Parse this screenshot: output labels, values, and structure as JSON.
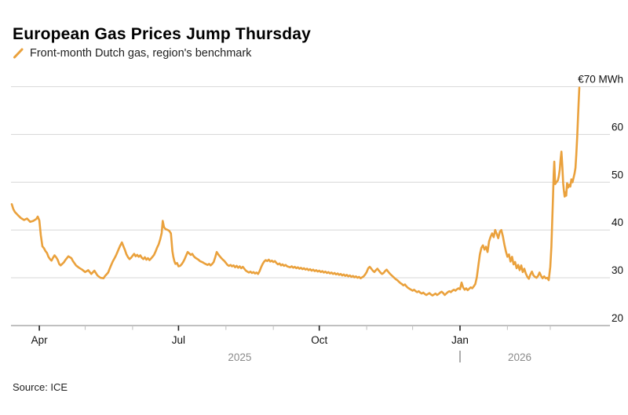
{
  "header": {
    "title": "European Gas Prices Jump Thursday",
    "legend_label": "Front-month Dutch gas, region's benchmark"
  },
  "footer": {
    "source": "Source: ICE"
  },
  "colors": {
    "background": "#FFFFFF",
    "line": "#EAA13C",
    "grid": "#DBDBDB",
    "axis": "#9A9A9A",
    "tick_major": "#222222",
    "tick_minor": "#C3C3C3",
    "label": "#111111",
    "muted": "#8A8A8A"
  },
  "chart_data": {
    "type": "line",
    "title": "European Gas Prices Jump Thursday",
    "series_name": "Front-month Dutch gas, region's benchmark",
    "unit": "EUR/MWh",
    "legend_position": "top-left",
    "grid": true,
    "y_axis": {
      "min": 20,
      "max": 70,
      "step": 10,
      "top_label": "€70 MWh",
      "tick_labels": [
        "20",
        "30",
        "40",
        "50",
        "60"
      ]
    },
    "x_axis": {
      "d_unit": "days since 2025-04-01 (visible axis: Apr 2025 - Mar 2026)",
      "domain": [
        -18.5,
        373
      ],
      "months": [
        {
          "d": 0,
          "label": "Apr"
        },
        {
          "d": 30,
          "label": ""
        },
        {
          "d": 61,
          "label": ""
        },
        {
          "d": 91,
          "label": "Jul"
        },
        {
          "d": 122,
          "label": ""
        },
        {
          "d": 153,
          "label": ""
        },
        {
          "d": 183,
          "label": "Oct"
        },
        {
          "d": 214,
          "label": ""
        },
        {
          "d": 244,
          "label": ""
        },
        {
          "d": 275,
          "label": "Jan"
        },
        {
          "d": 306,
          "label": ""
        },
        {
          "d": 334,
          "label": ""
        }
      ],
      "years": [
        {
          "d": 131,
          "label": "2025"
        },
        {
          "d": 314,
          "label": "2026"
        }
      ],
      "year_divider_d": 275
    },
    "points": [
      [
        -18,
        45.4
      ],
      [
        -17,
        44.4
      ],
      [
        -16,
        43.8
      ],
      [
        -14,
        43.1
      ],
      [
        -12,
        42.5
      ],
      [
        -10,
        42.1
      ],
      [
        -8,
        42.4
      ],
      [
        -6,
        41.7
      ],
      [
        -4,
        41.9
      ],
      [
        -2,
        42.3
      ],
      [
        -1,
        42.8
      ],
      [
        0,
        42.0
      ],
      [
        1,
        38.9
      ],
      [
        2,
        36.6
      ],
      [
        3,
        36.2
      ],
      [
        4,
        35.6
      ],
      [
        5,
        35.2
      ],
      [
        6,
        34.4
      ],
      [
        7,
        33.9
      ],
      [
        8,
        33.6
      ],
      [
        9,
        34.2
      ],
      [
        10,
        34.7
      ],
      [
        11,
        34.3
      ],
      [
        12,
        33.8
      ],
      [
        13,
        32.9
      ],
      [
        14,
        32.6
      ],
      [
        16,
        33.2
      ],
      [
        17,
        33.7
      ],
      [
        19,
        34.5
      ],
      [
        21,
        34.1
      ],
      [
        22,
        33.5
      ],
      [
        24,
        32.6
      ],
      [
        26,
        32.1
      ],
      [
        28,
        31.7
      ],
      [
        30,
        31.2
      ],
      [
        32,
        31.6
      ],
      [
        34,
        30.8
      ],
      [
        36,
        31.5
      ],
      [
        38,
        30.5
      ],
      [
        40,
        30.0
      ],
      [
        42,
        29.9
      ],
      [
        43,
        30.4
      ],
      [
        45,
        31.1
      ],
      [
        46,
        31.9
      ],
      [
        47,
        32.7
      ],
      [
        48,
        33.4
      ],
      [
        49,
        34.0
      ],
      [
        50,
        34.6
      ],
      [
        51,
        35.3
      ],
      [
        52,
        36.1
      ],
      [
        53,
        36.8
      ],
      [
        54,
        37.4
      ],
      [
        55,
        36.6
      ],
      [
        56,
        35.8
      ],
      [
        57,
        34.9
      ],
      [
        58,
        34.3
      ],
      [
        59,
        33.9
      ],
      [
        60,
        34.2
      ],
      [
        61,
        34.6
      ],
      [
        62,
        35.0
      ],
      [
        63,
        34.5
      ],
      [
        64,
        34.8
      ],
      [
        65,
        34.4
      ],
      [
        66,
        34.7
      ],
      [
        67,
        34.2
      ],
      [
        68,
        33.9
      ],
      [
        69,
        34.3
      ],
      [
        70,
        33.8
      ],
      [
        71,
        34.1
      ],
      [
        72,
        33.7
      ],
      [
        73,
        34.0
      ],
      [
        74,
        34.4
      ],
      [
        75,
        34.8
      ],
      [
        76,
        35.5
      ],
      [
        77,
        36.3
      ],
      [
        78,
        37.0
      ],
      [
        79,
        38.0
      ],
      [
        80,
        39.4
      ],
      [
        80.7,
        41.9
      ],
      [
        81.5,
        40.6
      ],
      [
        82.5,
        40.2
      ],
      [
        84,
        40.0
      ],
      [
        85,
        39.8
      ],
      [
        86,
        39.3
      ],
      [
        86.5,
        37.6
      ],
      [
        87,
        35.6
      ],
      [
        87.6,
        34.4
      ],
      [
        88.3,
        33.5
      ],
      [
        89,
        32.9
      ],
      [
        90,
        33.1
      ],
      [
        90.6,
        32.7
      ],
      [
        91,
        32.4
      ],
      [
        92,
        32.5
      ],
      [
        93,
        32.8
      ],
      [
        94,
        33.3
      ],
      [
        95,
        33.9
      ],
      [
        96,
        34.7
      ],
      [
        97,
        35.4
      ],
      [
        98,
        35.1
      ],
      [
        99,
        34.8
      ],
      [
        100,
        35.0
      ],
      [
        101,
        34.5
      ],
      [
        102,
        34.2
      ],
      [
        104,
        33.8
      ],
      [
        105,
        33.5
      ],
      [
        107,
        33.2
      ],
      [
        108,
        33.0
      ],
      [
        110,
        32.7
      ],
      [
        111,
        32.9
      ],
      [
        112,
        32.6
      ],
      [
        113,
        32.9
      ],
      [
        114,
        33.3
      ],
      [
        115,
        34.3
      ],
      [
        116,
        35.4
      ],
      [
        117,
        34.9
      ],
      [
        118,
        34.5
      ],
      [
        119,
        34.1
      ],
      [
        120,
        33.8
      ],
      [
        121,
        33.5
      ],
      [
        122,
        33.1
      ],
      [
        123,
        32.7
      ],
      [
        124,
        32.5
      ],
      [
        125,
        32.7
      ],
      [
        126,
        32.4
      ],
      [
        127,
        32.6
      ],
      [
        128,
        32.2
      ],
      [
        129,
        32.5
      ],
      [
        130,
        32.1
      ],
      [
        131,
        32.4
      ],
      [
        132,
        32.0
      ],
      [
        133,
        32.3
      ],
      [
        134,
        31.9
      ],
      [
        135,
        31.5
      ],
      [
        136,
        31.3
      ],
      [
        137,
        31.1
      ],
      [
        138,
        31.3
      ],
      [
        139,
        31.0
      ],
      [
        140,
        31.2
      ],
      [
        141,
        30.9
      ],
      [
        142,
        31.1
      ],
      [
        143,
        30.8
      ],
      [
        144,
        31.4
      ],
      [
        145,
        32.2
      ],
      [
        146,
        32.9
      ],
      [
        147,
        33.4
      ],
      [
        148,
        33.7
      ],
      [
        149,
        33.5
      ],
      [
        150,
        33.8
      ],
      [
        151,
        33.4
      ],
      [
        152,
        33.6
      ],
      [
        153,
        33.3
      ],
      [
        154,
        33.5
      ],
      [
        155,
        33.1
      ],
      [
        156,
        32.8
      ],
      [
        157,
        33.0
      ],
      [
        158,
        32.6
      ],
      [
        159,
        32.8
      ],
      [
        160,
        32.5
      ],
      [
        161,
        32.7
      ],
      [
        162,
        32.4
      ],
      [
        164,
        32.2
      ],
      [
        165,
        32.4
      ],
      [
        166,
        32.1
      ],
      [
        167,
        32.3
      ],
      [
        168,
        32.0
      ],
      [
        169,
        32.2
      ],
      [
        170,
        31.9
      ],
      [
        171,
        32.1
      ],
      [
        172,
        31.8
      ],
      [
        173,
        32.0
      ],
      [
        174,
        31.7
      ],
      [
        175,
        31.9
      ],
      [
        176,
        31.6
      ],
      [
        177,
        31.8
      ],
      [
        178,
        31.5
      ],
      [
        179,
        31.7
      ],
      [
        180,
        31.4
      ],
      [
        181,
        31.6
      ],
      [
        182,
        31.3
      ],
      [
        183,
        31.5
      ],
      [
        184,
        31.2
      ],
      [
        185,
        31.4
      ],
      [
        186,
        31.1
      ],
      [
        187,
        31.3
      ],
      [
        188,
        31.0
      ],
      [
        189,
        31.2
      ],
      [
        190,
        30.9
      ],
      [
        191,
        31.1
      ],
      [
        192,
        30.8
      ],
      [
        193,
        31.0
      ],
      [
        194,
        30.7
      ],
      [
        195,
        30.9
      ],
      [
        196,
        30.6
      ],
      [
        197,
        30.8
      ],
      [
        198,
        30.5
      ],
      [
        199,
        30.7
      ],
      [
        200,
        30.4
      ],
      [
        201,
        30.6
      ],
      [
        202,
        30.3
      ],
      [
        203,
        30.5
      ],
      [
        204,
        30.2
      ],
      [
        205,
        30.4
      ],
      [
        206,
        30.1
      ],
      [
        207,
        30.3
      ],
      [
        208,
        30.0
      ],
      [
        209,
        30.2
      ],
      [
        210,
        29.9
      ],
      [
        211,
        30.1
      ],
      [
        212,
        30.3
      ],
      [
        213,
        30.7
      ],
      [
        214,
        31.2
      ],
      [
        215,
        32.0
      ],
      [
        216,
        32.3
      ],
      [
        217,
        31.9
      ],
      [
        218,
        31.5
      ],
      [
        219,
        31.2
      ],
      [
        220,
        31.6
      ],
      [
        221,
        31.9
      ],
      [
        222,
        31.5
      ],
      [
        223,
        31.1
      ],
      [
        224,
        30.8
      ],
      [
        225,
        31.0
      ],
      [
        226,
        31.4
      ],
      [
        227,
        31.7
      ],
      [
        228,
        31.3
      ],
      [
        229,
        30.9
      ],
      [
        230,
        30.6
      ],
      [
        231,
        30.3
      ],
      [
        232,
        30.0
      ],
      [
        233,
        29.7
      ],
      [
        234,
        29.5
      ],
      [
        235,
        29.2
      ],
      [
        236,
        28.9
      ],
      [
        237,
        28.7
      ],
      [
        238,
        28.4
      ],
      [
        239,
        28.6
      ],
      [
        240,
        28.2
      ],
      [
        241,
        27.9
      ],
      [
        242,
        27.7
      ],
      [
        243,
        27.5
      ],
      [
        244,
        27.3
      ],
      [
        245,
        27.5
      ],
      [
        246,
        27.2
      ],
      [
        247,
        27.0
      ],
      [
        248,
        27.2
      ],
      [
        249,
        26.9
      ],
      [
        250,
        26.7
      ],
      [
        251,
        26.9
      ],
      [
        252,
        26.6
      ],
      [
        253,
        26.4
      ],
      [
        254,
        26.6
      ],
      [
        255,
        26.8
      ],
      [
        256,
        26.5
      ],
      [
        257,
        26.3
      ],
      [
        258,
        26.5
      ],
      [
        259,
        26.7
      ],
      [
        260,
        26.4
      ],
      [
        261,
        26.6
      ],
      [
        262,
        26.9
      ],
      [
        263,
        27.1
      ],
      [
        264,
        26.8
      ],
      [
        265,
        26.4
      ],
      [
        266,
        26.7
      ],
      [
        267,
        27.0
      ],
      [
        268,
        27.2
      ],
      [
        269,
        27.0
      ],
      [
        270,
        27.3
      ],
      [
        271,
        27.5
      ],
      [
        272,
        27.3
      ],
      [
        273,
        27.6
      ],
      [
        274,
        27.8
      ],
      [
        275,
        27.6
      ],
      [
        276,
        29.0
      ],
      [
        277,
        28.0
      ],
      [
        278,
        27.5
      ],
      [
        279,
        27.8
      ],
      [
        280,
        27.4
      ],
      [
        281,
        27.7
      ],
      [
        282,
        28.0
      ],
      [
        283,
        27.8
      ],
      [
        284,
        28.2
      ],
      [
        285,
        28.7
      ],
      [
        286,
        30.1
      ],
      [
        287,
        32.6
      ],
      [
        288,
        34.9
      ],
      [
        289,
        36.3
      ],
      [
        290,
        36.8
      ],
      [
        291,
        35.9
      ],
      [
        292,
        36.5
      ],
      [
        293,
        35.4
      ],
      [
        294,
        37.6
      ],
      [
        295,
        38.6
      ],
      [
        296,
        39.3
      ],
      [
        297,
        38.5
      ],
      [
        298,
        40.0
      ],
      [
        299,
        39.2
      ],
      [
        300,
        38.3
      ],
      [
        301,
        39.6
      ],
      [
        302,
        40.0
      ],
      [
        303,
        38.7
      ],
      [
        304,
        37.0
      ],
      [
        305,
        35.5
      ],
      [
        306,
        34.4
      ],
      [
        307,
        34.9
      ],
      [
        308,
        33.4
      ],
      [
        309,
        34.4
      ],
      [
        310,
        32.8
      ],
      [
        311,
        33.3
      ],
      [
        312,
        32.0
      ],
      [
        313,
        32.7
      ],
      [
        314,
        31.6
      ],
      [
        315,
        32.6
      ],
      [
        316,
        31.2
      ],
      [
        317,
        31.9
      ],
      [
        318,
        30.9
      ],
      [
        319,
        30.2
      ],
      [
        320,
        29.8
      ],
      [
        321,
        30.7
      ],
      [
        322,
        31.3
      ],
      [
        323,
        30.5
      ],
      [
        324,
        30.2
      ],
      [
        325,
        30.0
      ],
      [
        326,
        30.4
      ],
      [
        327,
        31.1
      ],
      [
        328,
        30.4
      ],
      [
        329,
        29.9
      ],
      [
        330,
        30.3
      ],
      [
        331,
        29.9
      ],
      [
        332,
        30.0
      ],
      [
        333,
        29.5
      ],
      [
        334,
        32.3
      ],
      [
        334.7,
        36.5
      ],
      [
        335.3,
        42.0
      ],
      [
        335.8,
        47.0
      ],
      [
        336.2,
        51.5
      ],
      [
        336.6,
        54.3
      ],
      [
        337.2,
        49.6
      ],
      [
        338,
        50.0
      ],
      [
        339,
        50.4
      ],
      [
        339.6,
        51.3
      ],
      [
        340.2,
        52.7
      ],
      [
        340.8,
        54.9
      ],
      [
        341.3,
        56.4
      ],
      [
        341.9,
        53.2
      ],
      [
        342.4,
        49.8
      ],
      [
        342.9,
        48.3
      ],
      [
        343.4,
        47.0
      ],
      [
        343.9,
        47.9
      ],
      [
        344.4,
        47.2
      ],
      [
        345,
        49.8
      ],
      [
        345.7,
        48.9
      ],
      [
        346.4,
        49.5
      ],
      [
        347.1,
        49.1
      ],
      [
        347.8,
        50.6
      ],
      [
        348.5,
        50.0
      ],
      [
        349.2,
        50.9
      ],
      [
        349.9,
        51.9
      ],
      [
        350.5,
        53.0
      ],
      [
        351,
        55.7
      ],
      [
        351.6,
        59.5
      ],
      [
        352.1,
        63.5
      ],
      [
        352.6,
        67.0
      ],
      [
        353,
        69.8
      ]
    ]
  }
}
